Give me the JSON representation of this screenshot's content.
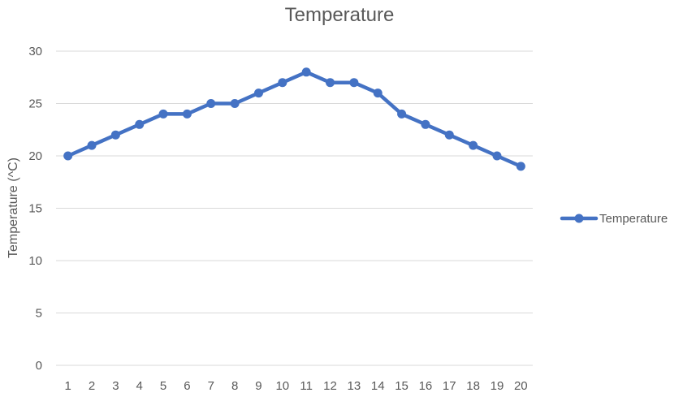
{
  "chart_data": {
    "type": "line",
    "title": "Temperature",
    "xlabel": "",
    "ylabel": "Temperature (^C)",
    "ylim": [
      0,
      30
    ],
    "y_ticks": [
      0,
      5,
      10,
      15,
      20,
      25,
      30
    ],
    "grid": true,
    "legend_position": "right",
    "categories": [
      "1",
      "2",
      "3",
      "4",
      "5",
      "6",
      "7",
      "8",
      "9",
      "10",
      "11",
      "12",
      "13",
      "14",
      "15",
      "16",
      "17",
      "18",
      "19",
      "20"
    ],
    "series": [
      {
        "name": "Temperature",
        "color": "#4472c4",
        "values": [
          20,
          21,
          22,
          23,
          24,
          24,
          25,
          25,
          26,
          27,
          28,
          27,
          27,
          26,
          24,
          23,
          22,
          21,
          20,
          19
        ]
      }
    ]
  }
}
